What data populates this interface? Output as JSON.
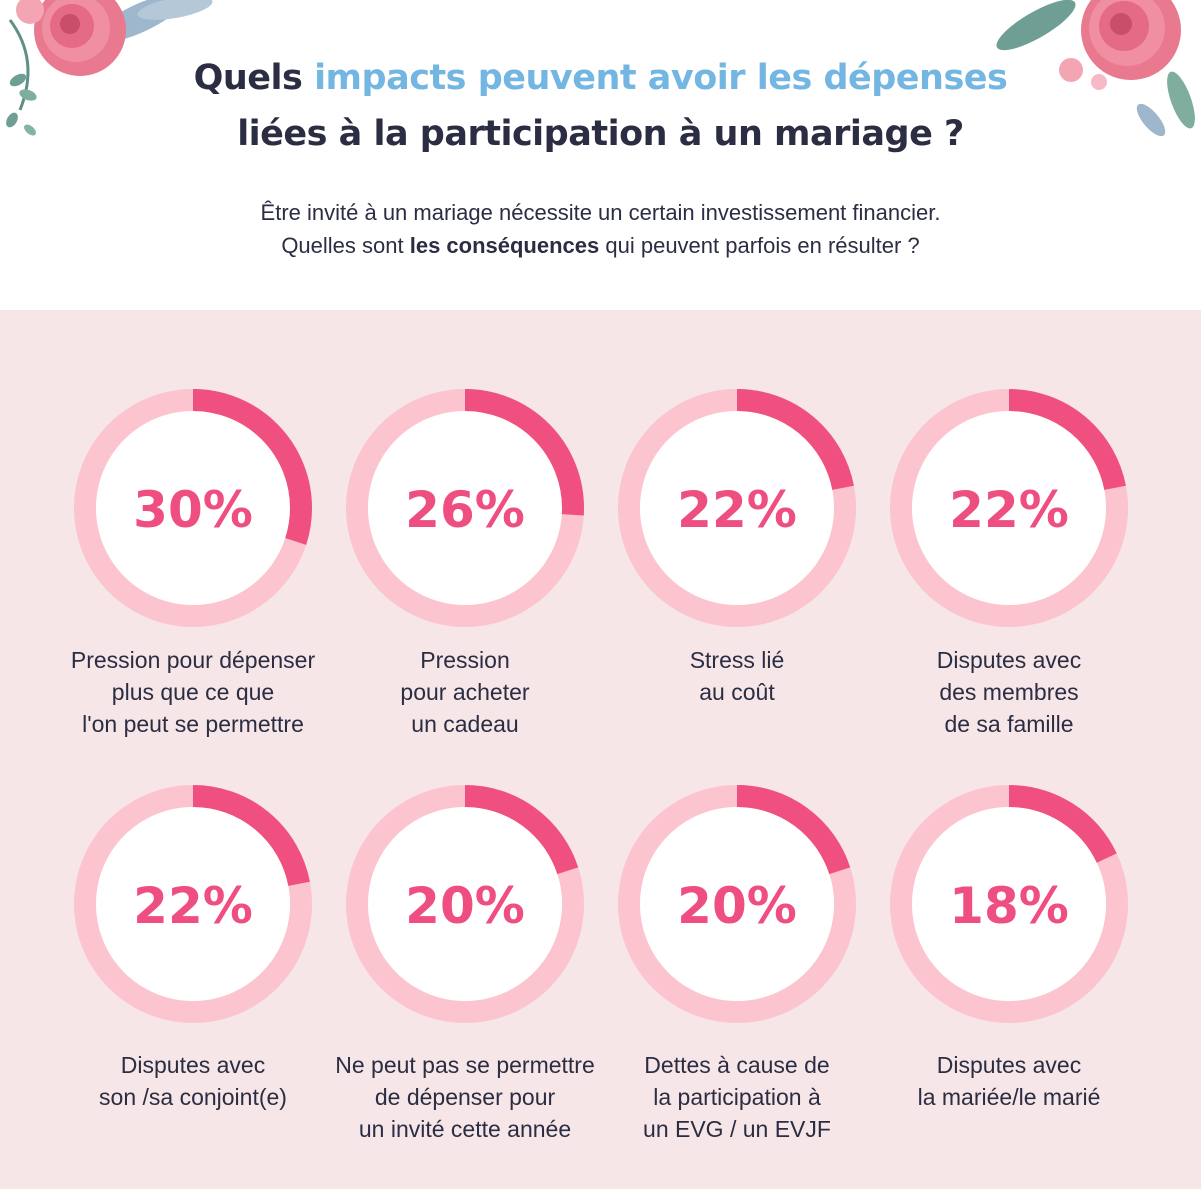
{
  "title": {
    "line1_part1": "Quels ",
    "line1_highlight": "impacts peuvent avoir les dépenses",
    "line2": "liées à la participation à un mariage ?"
  },
  "intro": {
    "line1": "Être invité à un mariage nécessite un certain investissement financier.",
    "line2_part1": "Quelles sont ",
    "line2_bold": "les conséquences",
    "line2_part2": " qui peuvent parfois en résulter ?"
  },
  "colors": {
    "accent": "#74b6e2",
    "arc": "#f0507f",
    "ring": "#fbc4cf",
    "panel": "#f6e6e8",
    "text": "#2b2d42"
  },
  "chart_data": {
    "type": "donut",
    "unit": "%",
    "categories": [
      [
        "Pression pour dépenser",
        "plus que ce que",
        "l'on peut se permettre"
      ],
      [
        "Pression",
        "pour acheter",
        "un cadeau"
      ],
      [
        "Stress lié",
        "au coût"
      ],
      [
        "Disputes avec",
        "des membres",
        "de sa famille"
      ],
      [
        "Disputes avec",
        "son /sa conjoint(e)"
      ],
      [
        "Ne peut pas se permettre",
        "de dépenser pour",
        "un invité cette année"
      ],
      [
        "Dettes à cause de",
        "la participation à",
        "un EVG / un EVJF"
      ],
      [
        "Disputes avec",
        "la mariée/le marié"
      ]
    ],
    "values": [
      30,
      26,
      22,
      22,
      22,
      20,
      20,
      18
    ],
    "labels": [
      "30%",
      "26%",
      "22%",
      "22%",
      "22%",
      "20%",
      "20%",
      "18%"
    ]
  }
}
